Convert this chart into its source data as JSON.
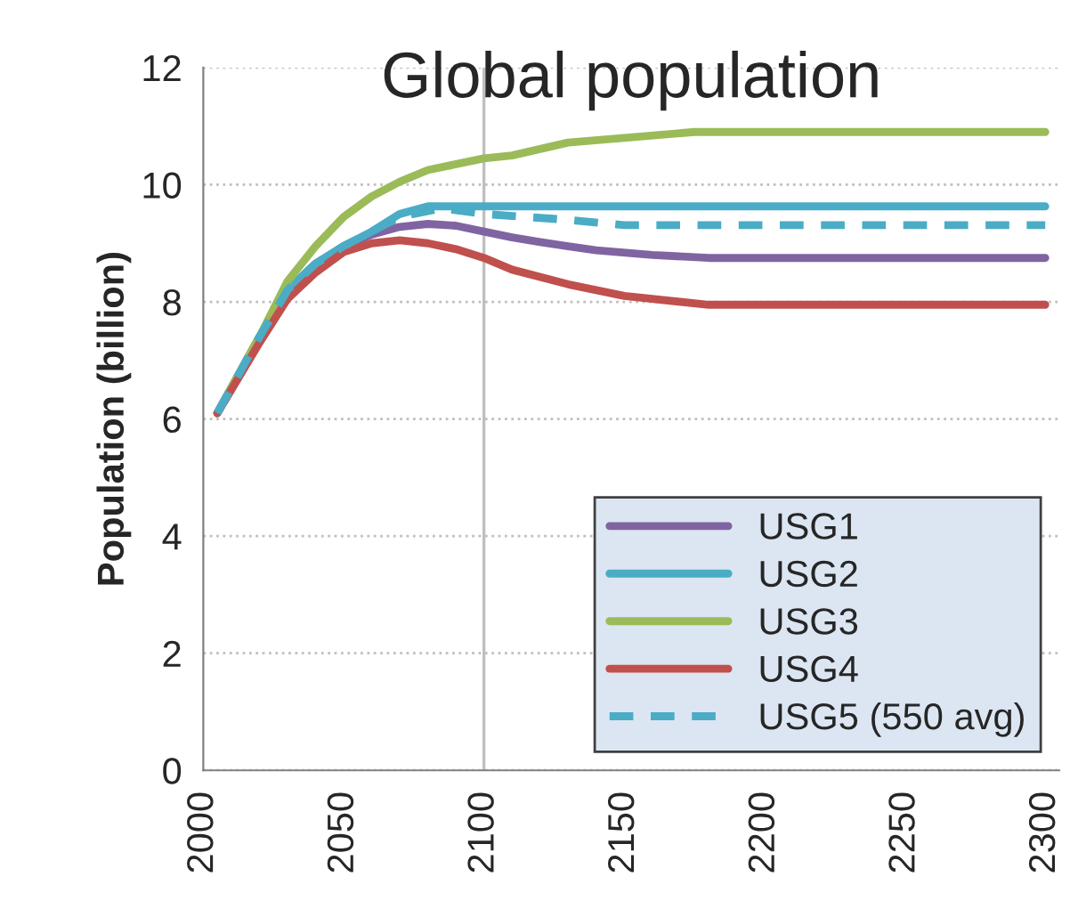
{
  "chart_data": {
    "type": "line",
    "title": "Global population",
    "ylabel": "Population (billion)",
    "xlim": [
      2000,
      2305
    ],
    "xticks": [
      2000,
      2050,
      2100,
      2150,
      2200,
      2250,
      2300
    ],
    "ylim": [
      0,
      12
    ],
    "yticks": [
      0,
      2,
      4,
      6,
      8,
      10,
      12
    ],
    "grid": "y",
    "legend": "bottom right",
    "marker": "none",
    "ref_lines": [
      {
        "axis": "x",
        "value": 2100,
        "color": "#bfbfbf"
      }
    ],
    "series": [
      {
        "name": "USG1",
        "color": "#8064a2",
        "x": [
          2005,
          2020,
          2030,
          2040,
          2050,
          2060,
          2070,
          2080,
          2090,
          2100,
          2110,
          2120,
          2130,
          2140,
          2160,
          2180,
          2300
        ],
        "values": [
          6.1,
          7.4,
          8.2,
          8.65,
          8.95,
          9.15,
          9.28,
          9.33,
          9.3,
          9.2,
          9.1,
          9.02,
          8.95,
          8.88,
          8.8,
          8.75,
          8.75
        ]
      },
      {
        "name": "USG2",
        "color": "#4bacc6",
        "x": [
          2005,
          2020,
          2030,
          2040,
          2050,
          2060,
          2070,
          2080,
          2090,
          2300
        ],
        "values": [
          6.1,
          7.4,
          8.2,
          8.65,
          8.95,
          9.2,
          9.5,
          9.63,
          9.63,
          9.63
        ]
      },
      {
        "name": "USG3",
        "color": "#9bbb59",
        "x": [
          2005,
          2020,
          2030,
          2040,
          2050,
          2060,
          2070,
          2080,
          2090,
          2100,
          2110,
          2130,
          2150,
          2175,
          2300
        ],
        "values": [
          6.1,
          7.4,
          8.35,
          8.95,
          9.45,
          9.8,
          10.05,
          10.25,
          10.35,
          10.45,
          10.5,
          10.72,
          10.8,
          10.9,
          10.9
        ]
      },
      {
        "name": "USG4",
        "color": "#c0504d",
        "x": [
          2005,
          2020,
          2030,
          2040,
          2050,
          2060,
          2070,
          2080,
          2090,
          2100,
          2110,
          2130,
          2150,
          2180,
          2300
        ],
        "values": [
          6.1,
          7.3,
          8.05,
          8.5,
          8.85,
          9.0,
          9.05,
          9.0,
          8.9,
          8.75,
          8.55,
          8.3,
          8.1,
          7.95,
          7.95
        ]
      },
      {
        "name": "USG5 (550 avg)",
        "color": "#4bacc6",
        "line_style": "dashed",
        "x": [
          2005,
          2020,
          2030,
          2040,
          2050,
          2060,
          2070,
          2085,
          2100,
          2130,
          2150,
          2300
        ],
        "values": [
          6.1,
          7.4,
          8.2,
          8.65,
          8.95,
          9.2,
          9.45,
          9.6,
          9.5,
          9.4,
          9.31,
          9.31
        ]
      }
    ]
  }
}
